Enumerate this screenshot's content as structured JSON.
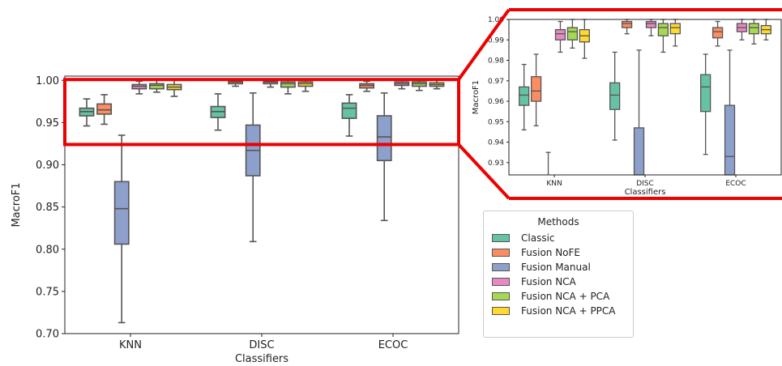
{
  "chart_data": [
    {
      "type": "box",
      "title": "",
      "xlabel": "Classifiers",
      "ylabel": "MacroF1",
      "categories": [
        "KNN",
        "DISC",
        "ECOC"
      ],
      "ylim": [
        0.7,
        1.005
      ],
      "yticks": [
        "0.70",
        "0.75",
        "0.80",
        "0.85",
        "0.90",
        "0.95",
        "1.00"
      ],
      "grid": false,
      "series": [
        {
          "name": "Classic",
          "color": "#66c2a5",
          "boxes": [
            {
              "whislo": 0.946,
              "q1": 0.958,
              "med": 0.963,
              "q3": 0.967,
              "whishi": 0.978
            },
            {
              "whislo": 0.941,
              "q1": 0.956,
              "med": 0.963,
              "q3": 0.969,
              "whishi": 0.984
            },
            {
              "whislo": 0.934,
              "q1": 0.955,
              "med": 0.967,
              "q3": 0.973,
              "whishi": 0.983
            }
          ]
        },
        {
          "name": "Fusion NoFE",
          "color": "#fc8d62",
          "boxes": [
            {
              "whislo": 0.948,
              "q1": 0.96,
              "med": 0.965,
              "q3": 0.972,
              "whishi": 0.983
            },
            {
              "whislo": 0.993,
              "q1": 0.996,
              "med": 0.998,
              "q3": 0.999,
              "whishi": 1.0
            },
            {
              "whislo": 0.987,
              "q1": 0.991,
              "med": 0.994,
              "q3": 0.996,
              "whishi": 0.999
            }
          ]
        },
        {
          "name": "Fusion Manual",
          "color": "#8da0cb",
          "boxes": [
            {
              "whislo": 0.713,
              "q1": 0.806,
              "med": 0.848,
              "q3": 0.88,
              "whishi": 0.935
            },
            {
              "whislo": 0.809,
              "q1": 0.887,
              "med": 0.917,
              "q3": 0.947,
              "whishi": 0.985
            },
            {
              "whislo": 0.834,
              "q1": 0.905,
              "med": 0.933,
              "q3": 0.958,
              "whishi": 0.985
            }
          ]
        },
        {
          "name": "Fusion NCA",
          "color": "#e78ac3",
          "boxes": [
            {
              "whislo": 0.984,
              "q1": 0.99,
              "med": 0.993,
              "q3": 0.995,
              "whishi": 0.999
            },
            {
              "whislo": 0.992,
              "q1": 0.996,
              "med": 0.998,
              "q3": 0.999,
              "whishi": 1.0
            },
            {
              "whislo": 0.99,
              "q1": 0.994,
              "med": 0.996,
              "q3": 0.998,
              "whishi": 1.0
            }
          ]
        },
        {
          "name": "Fusion NCA + PCA",
          "color": "#a6d854",
          "boxes": [
            {
              "whislo": 0.986,
              "q1": 0.99,
              "med": 0.994,
              "q3": 0.996,
              "whishi": 1.0
            },
            {
              "whislo": 0.984,
              "q1": 0.992,
              "med": 0.996,
              "q3": 0.998,
              "whishi": 1.0
            },
            {
              "whislo": 0.988,
              "q1": 0.993,
              "med": 0.996,
              "q3": 0.998,
              "whishi": 1.0
            }
          ]
        },
        {
          "name": "Fusion NCA + PPCA",
          "color": "#ffd92f",
          "boxes": [
            {
              "whislo": 0.981,
              "q1": 0.989,
              "med": 0.992,
              "q3": 0.995,
              "whishi": 1.0
            },
            {
              "whislo": 0.987,
              "q1": 0.993,
              "med": 0.996,
              "q3": 0.998,
              "whishi": 1.0
            },
            {
              "whislo": 0.99,
              "q1": 0.993,
              "med": 0.995,
              "q3": 0.997,
              "whishi": 1.0
            }
          ]
        }
      ]
    },
    {
      "type": "box",
      "title": "",
      "xlabel": "Classifiers",
      "ylabel": "MacroF1",
      "categories": [
        "KNN",
        "DISC",
        "ECOC"
      ],
      "ylim": [
        0.924,
        1.0
      ],
      "yticks": [
        "0.93",
        "0.94",
        "0.95",
        "0.96",
        "0.97",
        "0.98",
        "0.99",
        "1.00"
      ],
      "grid": false,
      "note": "zoomed view of the region marked by the red outline; same series as the main panel"
    }
  ],
  "legend": {
    "title": "Methods",
    "entries": [
      "Classic",
      "Fusion NoFE",
      "Fusion Manual",
      "Fusion NCA",
      "Fusion NCA + PCA",
      "Fusion NCA + PPCA"
    ]
  },
  "colors": {
    "highlight": "#ee0000",
    "box_edge": "#555555"
  }
}
